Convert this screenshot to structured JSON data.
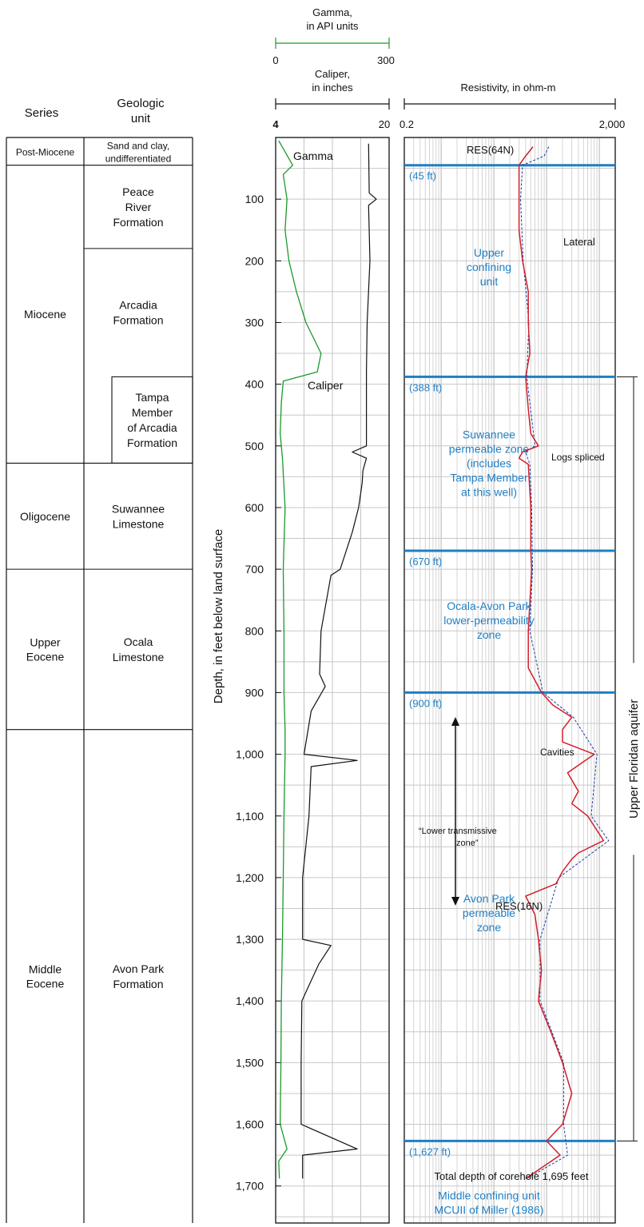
{
  "chart_data": {
    "type": "line",
    "headers": {
      "series_col": "Series",
      "unit_col": [
        "Geologic",
        "unit"
      ],
      "depth_axis": "Depth, in feet below land surface",
      "gamma_label": [
        "Gamma,",
        "in API units"
      ],
      "gamma_min": "0",
      "gamma_max": "300",
      "caliper_label": [
        "Caliper,",
        "in inches"
      ],
      "caliper_min": "4",
      "caliper_max": "20",
      "resistivity_label": "Resistivity, in ohm-m",
      "res_min": "0.2",
      "res_max": "2,000"
    },
    "depth_axis": {
      "min": 0,
      "max": 1760,
      "ticks": [
        100,
        200,
        300,
        400,
        500,
        600,
        700,
        800,
        900,
        1000,
        1100,
        1200,
        1300,
        1400,
        1500,
        1600,
        1700
      ],
      "tick_labels": [
        "100",
        "200",
        "300",
        "400",
        "500",
        "600",
        "700",
        "800",
        "900",
        "1,000",
        "1,100",
        "1,200",
        "1,300",
        "1,400",
        "1,500",
        "1,600",
        "1,700"
      ]
    },
    "gamma_range": [
      0,
      300
    ],
    "caliper_range": [
      4,
      20
    ],
    "resistivity_range": [
      0.2,
      2000
    ],
    "resistivity_scale": "log",
    "series_units": [
      {
        "label": [
          "Post-Miocene"
        ],
        "top": 0,
        "bottom": 45
      },
      {
        "label": [
          "Miocene"
        ],
        "top": 45,
        "bottom": 528
      },
      {
        "label": [
          "Oligocene"
        ],
        "top": 528,
        "bottom": 700
      },
      {
        "label": [
          "Upper",
          "Eocene"
        ],
        "top": 700,
        "bottom": 960
      },
      {
        "label": [
          "Middle",
          "Eocene"
        ],
        "top": 960,
        "bottom": 1760
      }
    ],
    "geologic_units": [
      {
        "label": [
          "Sand and clay,",
          "undifferentiated"
        ],
        "top": 0,
        "bottom": 45
      },
      {
        "label": [
          "Peace",
          "River",
          "Formation"
        ],
        "top": 45,
        "bottom": 180
      },
      {
        "label": [
          "Arcadia",
          "Formation"
        ],
        "top": 180,
        "bottom": 388
      },
      {
        "label": [
          "Tampa",
          "Member",
          "of Arcadia",
          "Formation"
        ],
        "top": 388,
        "bottom": 528,
        "member": true
      },
      {
        "label": [
          "Suwannee",
          "Limestone"
        ],
        "top": 528,
        "bottom": 700
      },
      {
        "label": [
          "Ocala",
          "Limestone"
        ],
        "top": 700,
        "bottom": 960
      },
      {
        "label": [
          "Avon Park",
          "Formation"
        ],
        "top": 960,
        "bottom": 1760
      }
    ],
    "boundaries": [
      {
        "depth": 45,
        "label": "(45 ft)"
      },
      {
        "depth": 388,
        "label": "(388 ft)"
      },
      {
        "depth": 670,
        "label": "(670 ft)"
      },
      {
        "depth": 900,
        "label": "(900 ft)"
      },
      {
        "depth": 1627,
        "label": "(1,627 ft)"
      }
    ],
    "zones": [
      {
        "label": [
          "Upper",
          "confining",
          "unit"
        ],
        "depth": 210
      },
      {
        "label": [
          "Suwannee",
          "permeable zone",
          "(includes",
          "Tampa Member",
          "at this well)"
        ],
        "depth": 528
      },
      {
        "label": [
          "Ocala-Avon Park",
          "lower-permeability",
          "zone"
        ],
        "depth": 783
      },
      {
        "label": [
          "Avon Park",
          "permeable",
          "zone"
        ],
        "depth": 1257
      },
      {
        "label": [
          "Middle confining unit",
          "MCUII of Miller (1986)"
        ],
        "depth": 1727
      }
    ],
    "annotations": {
      "gamma": "Gamma",
      "caliper": "Caliper",
      "res64": "RES(64N)",
      "res16": "RES(16N)",
      "lateral": "Lateral",
      "logs_spliced": "Logs spliced",
      "cavities": "Cavities",
      "lower_transmissive": [
        "“Lower transmissive",
        "zone”"
      ],
      "total_depth": "Total depth of corehole 1,695 feet",
      "aquifer": "Upper Floridan aquifer"
    },
    "aquifer_range": [
      388,
      1627
    ],
    "series": [
      {
        "name": "Gamma",
        "units": "API units",
        "points": [
          [
            5,
            8
          ],
          [
            45,
            45
          ],
          [
            60,
            20
          ],
          [
            100,
            30
          ],
          [
            150,
            25
          ],
          [
            200,
            35
          ],
          [
            250,
            55
          ],
          [
            300,
            80
          ],
          [
            350,
            120
          ],
          [
            380,
            110
          ],
          [
            395,
            20
          ],
          [
            430,
            15
          ],
          [
            480,
            12
          ],
          [
            520,
            18
          ],
          [
            600,
            25
          ],
          [
            700,
            20
          ],
          [
            800,
            22
          ],
          [
            900,
            22
          ],
          [
            960,
            25
          ],
          [
            1000,
            25
          ],
          [
            1100,
            22
          ],
          [
            1200,
            20
          ],
          [
            1300,
            18
          ],
          [
            1400,
            15
          ],
          [
            1500,
            14
          ],
          [
            1600,
            12
          ],
          [
            1640,
            30
          ],
          [
            1660,
            8
          ],
          [
            1688,
            10
          ]
        ]
      },
      {
        "name": "Caliper",
        "units": "inches",
        "points": [
          [
            10,
            17.1
          ],
          [
            90,
            17.2
          ],
          [
            100,
            18.2
          ],
          [
            110,
            17.1
          ],
          [
            200,
            17.3
          ],
          [
            300,
            16.9
          ],
          [
            380,
            16.8
          ],
          [
            500,
            16.8
          ],
          [
            510,
            14.8
          ],
          [
            520,
            16.8
          ],
          [
            540,
            16.3
          ],
          [
            560,
            16.2
          ],
          [
            600,
            15.7
          ],
          [
            640,
            14.8
          ],
          [
            700,
            13.1
          ],
          [
            710,
            11.8
          ],
          [
            800,
            10.4
          ],
          [
            870,
            10.2
          ],
          [
            890,
            11
          ],
          [
            930,
            9
          ],
          [
            1000,
            8
          ],
          [
            1010,
            15.5
          ],
          [
            1020,
            9
          ],
          [
            1100,
            8.7
          ],
          [
            1200,
            7.8
          ],
          [
            1300,
            7.8
          ],
          [
            1310,
            11.8
          ],
          [
            1340,
            10.1
          ],
          [
            1400,
            7.7
          ],
          [
            1500,
            7.6
          ],
          [
            1600,
            7.6
          ],
          [
            1640,
            15.5
          ],
          [
            1650,
            7.8
          ],
          [
            1688,
            7.8
          ]
        ]
      },
      {
        "name": "RES(16N)",
        "units": "ohm-m",
        "points": [
          [
            15,
            55
          ],
          [
            30,
            40
          ],
          [
            45,
            30
          ],
          [
            100,
            30
          ],
          [
            150,
            30
          ],
          [
            200,
            35
          ],
          [
            250,
            45
          ],
          [
            300,
            45
          ],
          [
            350,
            48
          ],
          [
            388,
            40
          ],
          [
            440,
            45
          ],
          [
            480,
            50
          ],
          [
            500,
            70
          ],
          [
            510,
            35
          ],
          [
            520,
            30
          ],
          [
            530,
            45
          ],
          [
            600,
            50
          ],
          [
            670,
            50
          ],
          [
            700,
            52
          ],
          [
            800,
            45
          ],
          [
            860,
            45
          ],
          [
            880,
            60
          ],
          [
            900,
            80
          ],
          [
            920,
            130
          ],
          [
            940,
            300
          ],
          [
            960,
            200
          ],
          [
            980,
            200
          ],
          [
            1000,
            800
          ],
          [
            1030,
            250
          ],
          [
            1060,
            400
          ],
          [
            1080,
            300
          ],
          [
            1100,
            600
          ],
          [
            1140,
            1200
          ],
          [
            1160,
            400
          ],
          [
            1170,
            300
          ],
          [
            1190,
            200
          ],
          [
            1210,
            150
          ],
          [
            1230,
            40
          ],
          [
            1260,
            60
          ],
          [
            1300,
            70
          ],
          [
            1350,
            80
          ],
          [
            1400,
            70
          ],
          [
            1450,
            120
          ],
          [
            1500,
            200
          ],
          [
            1550,
            300
          ],
          [
            1600,
            200
          ],
          [
            1627,
            100
          ],
          [
            1650,
            180
          ],
          [
            1688,
            40
          ]
        ]
      },
      {
        "name": "RES(64N)",
        "units": "ohm-m",
        "points": [
          [
            15,
            110
          ],
          [
            30,
            90
          ],
          [
            45,
            35
          ],
          [
            100,
            32
          ],
          [
            200,
            36
          ],
          [
            300,
            46
          ],
          [
            388,
            42
          ],
          [
            500,
            60
          ],
          [
            510,
            40
          ],
          [
            530,
            48
          ],
          [
            600,
            52
          ],
          [
            700,
            54
          ],
          [
            800,
            48
          ],
          [
            900,
            85
          ],
          [
            940,
            320
          ],
          [
            1000,
            900
          ],
          [
            1100,
            700
          ],
          [
            1140,
            1500
          ],
          [
            1200,
            170
          ],
          [
            1300,
            75
          ],
          [
            1400,
            75
          ],
          [
            1500,
            210
          ],
          [
            1600,
            210
          ],
          [
            1650,
            250
          ],
          [
            1688,
            42
          ]
        ]
      }
    ]
  }
}
